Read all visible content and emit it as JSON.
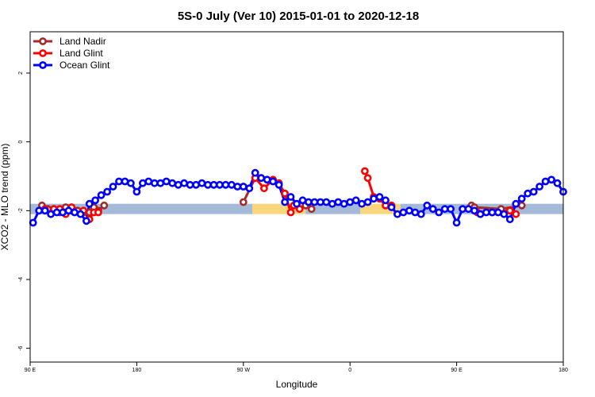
{
  "chart_data": {
    "type": "line",
    "title": "5S-0 July (Ver 10)   2015-01-01 to 2020-12-18",
    "xlabel": "Longitude",
    "ylabel": "XCO2 - MLO trend (ppm)",
    "xlim": [
      0,
      360
    ],
    "ylim": [
      -6.4,
      3.2
    ],
    "x_ticks": [
      {
        "value": 0,
        "label": "90 E"
      },
      {
        "value": 72,
        "label": "180"
      },
      {
        "value": 144,
        "label": "90 W"
      },
      {
        "value": 216,
        "label": "0"
      },
      {
        "value": 288,
        "label": "90 E"
      },
      {
        "value": 360,
        "label": "180"
      }
    ],
    "y_ticks": [
      {
        "value": 2,
        "label": "2"
      },
      {
        "value": 0,
        "label": "0"
      },
      {
        "value": -2,
        "label": "-2"
      },
      {
        "value": -4,
        "label": "-4"
      },
      {
        "value": -6,
        "label": "-6"
      }
    ],
    "bands": [
      {
        "x_start": 0,
        "x_end": 150,
        "y_low": -2.1,
        "y_high": -1.8,
        "color": "#a5b9d8"
      },
      {
        "x_start": 150,
        "x_end": 186,
        "y_low": -2.1,
        "y_high": -1.8,
        "color": "#f9d67c"
      },
      {
        "x_start": 186,
        "x_end": 223,
        "y_low": -2.1,
        "y_high": -1.8,
        "color": "#a5b9d8"
      },
      {
        "x_start": 223,
        "x_end": 250,
        "y_low": -2.1,
        "y_high": -1.8,
        "color": "#f9d67c"
      },
      {
        "x_start": 250,
        "x_end": 360,
        "y_low": -2.1,
        "y_high": -1.8,
        "color": "#a5b9d8"
      }
    ],
    "legend_position": "top-left",
    "series": [
      {
        "name": "Land Nadir",
        "color": "#a52a2a",
        "segments": [
          [
            [
              8,
              -1.85
            ],
            [
              12,
              -1.95
            ],
            [
              16,
              -1.95
            ],
            [
              20,
              -2.05
            ],
            [
              24,
              -1.9
            ],
            [
              28,
              -2.0
            ],
            [
              32,
              -2.0
            ],
            [
              36,
              -2.05
            ],
            [
              40,
              -2.05
            ],
            [
              43,
              -1.9
            ],
            [
              46,
              -2.0
            ],
            [
              50,
              -1.85
            ]
          ],
          [
            [
              144,
              -1.75
            ],
            [
              152,
              -1.05
            ],
            [
              156,
              -1.05
            ]
          ],
          [
            [
              186,
              -1.85
            ],
            [
              190,
              -1.95
            ]
          ],
          [
            [
              298,
              -1.85
            ],
            [
              300,
              -1.9
            ],
            [
              318,
              -1.95
            ],
            [
              332,
              -1.85
            ]
          ]
        ]
      },
      {
        "name": "Land Glint",
        "color": "#ff0000",
        "segments": [
          [
            [
              10,
              -1.95
            ],
            [
              16,
              -1.95
            ],
            [
              20,
              -1.95
            ],
            [
              24,
              -2.1
            ],
            [
              28,
              -1.9
            ],
            [
              36,
              -2.0
            ],
            [
              40,
              -2.25
            ],
            [
              43,
              -2.05
            ],
            [
              46,
              -2.05
            ]
          ],
          [
            [
              152,
              -1.05
            ],
            [
              158,
              -1.35
            ],
            [
              164,
              -1.1
            ],
            [
              168,
              -1.2
            ],
            [
              172,
              -1.5
            ],
            [
              176,
              -2.05
            ],
            [
              178,
              -1.85
            ],
            [
              182,
              -1.95
            ]
          ],
          [
            [
              226,
              -0.85
            ],
            [
              228,
              -1.05
            ],
            [
              232,
              -1.6
            ],
            [
              236,
              -1.65
            ],
            [
              240,
              -1.85
            ],
            [
              244,
              -1.85
            ]
          ],
          [
            [
              302,
              -2.05
            ],
            [
              312,
              -2.05
            ],
            [
              324,
              -2.0
            ],
            [
              328,
              -2.1
            ]
          ]
        ]
      },
      {
        "name": "Ocean Glint",
        "color": "#0000ff",
        "segments": [
          [
            [
              2,
              -2.35
            ],
            [
              6,
              -2.0
            ],
            [
              10,
              -2.0
            ],
            [
              14,
              -2.1
            ],
            [
              18,
              -2.05
            ],
            [
              22,
              -2.05
            ],
            [
              26,
              -2.0
            ],
            [
              30,
              -2.05
            ],
            [
              34,
              -2.1
            ],
            [
              38,
              -2.3
            ],
            [
              40,
              -1.8
            ],
            [
              44,
              -1.7
            ],
            [
              48,
              -1.55
            ],
            [
              52,
              -1.45
            ],
            [
              56,
              -1.3
            ],
            [
              60,
              -1.15
            ],
            [
              64,
              -1.15
            ],
            [
              68,
              -1.2
            ],
            [
              72,
              -1.45
            ],
            [
              76,
              -1.2
            ],
            [
              80,
              -1.15
            ],
            [
              84,
              -1.2
            ],
            [
              88,
              -1.2
            ],
            [
              92,
              -1.15
            ],
            [
              96,
              -1.2
            ],
            [
              100,
              -1.25
            ],
            [
              104,
              -1.2
            ],
            [
              108,
              -1.25
            ],
            [
              112,
              -1.25
            ],
            [
              116,
              -1.2
            ],
            [
              120,
              -1.25
            ],
            [
              124,
              -1.25
            ],
            [
              128,
              -1.25
            ],
            [
              132,
              -1.25
            ],
            [
              136,
              -1.25
            ],
            [
              140,
              -1.3
            ],
            [
              144,
              -1.3
            ],
            [
              148,
              -1.35
            ],
            [
              152,
              -0.9
            ],
            [
              156,
              -1.05
            ],
            [
              160,
              -1.1
            ],
            [
              164,
              -1.15
            ],
            [
              168,
              -1.25
            ],
            [
              172,
              -1.75
            ],
            [
              176,
              -1.6
            ],
            [
              180,
              -1.8
            ],
            [
              184,
              -1.7
            ],
            [
              188,
              -1.75
            ],
            [
              192,
              -1.75
            ],
            [
              196,
              -1.75
            ],
            [
              200,
              -1.75
            ],
            [
              204,
              -1.8
            ],
            [
              208,
              -1.75
            ],
            [
              212,
              -1.8
            ],
            [
              216,
              -1.75
            ],
            [
              220,
              -1.7
            ],
            [
              224,
              -1.8
            ],
            [
              228,
              -1.75
            ],
            [
              232,
              -1.65
            ],
            [
              236,
              -1.6
            ],
            [
              240,
              -1.7
            ],
            [
              244,
              -1.9
            ],
            [
              248,
              -2.1
            ],
            [
              252,
              -2.05
            ],
            [
              256,
              -2.0
            ],
            [
              260,
              -2.05
            ],
            [
              264,
              -2.1
            ],
            [
              268,
              -1.85
            ],
            [
              272,
              -1.95
            ],
            [
              276,
              -2.05
            ],
            [
              280,
              -1.95
            ],
            [
              284,
              -1.95
            ],
            [
              288,
              -2.35
            ],
            [
              292,
              -1.95
            ],
            [
              296,
              -1.95
            ],
            [
              300,
              -2.0
            ],
            [
              304,
              -2.1
            ],
            [
              308,
              -2.05
            ],
            [
              312,
              -2.05
            ],
            [
              316,
              -2.05
            ],
            [
              320,
              -2.1
            ],
            [
              324,
              -2.25
            ],
            [
              328,
              -1.8
            ],
            [
              332,
              -1.65
            ],
            [
              336,
              -1.5
            ],
            [
              340,
              -1.45
            ],
            [
              344,
              -1.3
            ],
            [
              348,
              -1.15
            ],
            [
              352,
              -1.1
            ],
            [
              356,
              -1.2
            ],
            [
              360,
              -1.45
            ]
          ]
        ]
      }
    ]
  }
}
